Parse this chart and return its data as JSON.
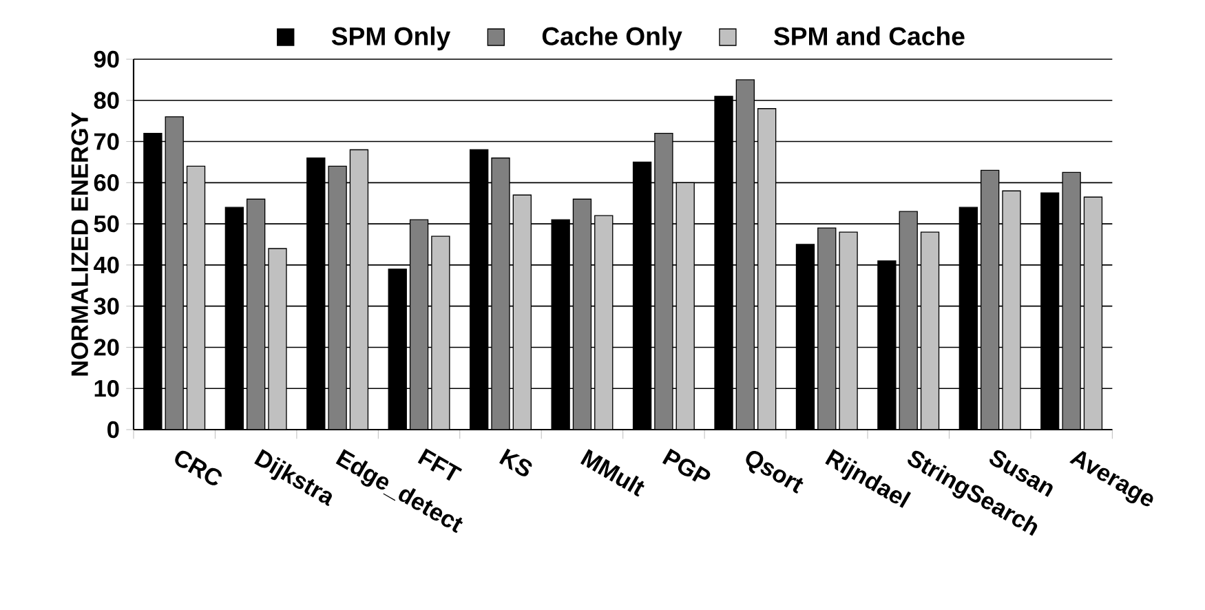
{
  "chart_data": {
    "type": "bar",
    "ylabel": "NORMALIZED ENERGY",
    "categories": [
      "CRC",
      "Dijkstra",
      "Edge_detect",
      "FFT",
      "KS",
      "MMult",
      "PGP",
      "Qsort",
      "Rijndael",
      "StringSearch",
      "Susan",
      "Average"
    ],
    "series": [
      {
        "name": "SPM Only",
        "color": "#000000",
        "values": [
          72,
          54,
          66,
          39,
          68,
          51,
          65,
          81,
          45,
          41,
          54,
          57.5
        ]
      },
      {
        "name": "Cache Only",
        "color": "#808080",
        "values": [
          76,
          56,
          64,
          51,
          66,
          56,
          72,
          85,
          49,
          53,
          63,
          62.5
        ]
      },
      {
        "name": "SPM and Cache",
        "color": "#c0c0c0",
        "values": [
          64,
          44,
          68,
          47,
          57,
          52,
          60,
          78,
          48,
          48,
          58,
          56.5
        ]
      }
    ],
    "ylim": [
      0,
      90
    ],
    "yticks": [
      0,
      10,
      20,
      30,
      40,
      50,
      60,
      70,
      80,
      90
    ],
    "grid": "y",
    "legend": "top"
  }
}
